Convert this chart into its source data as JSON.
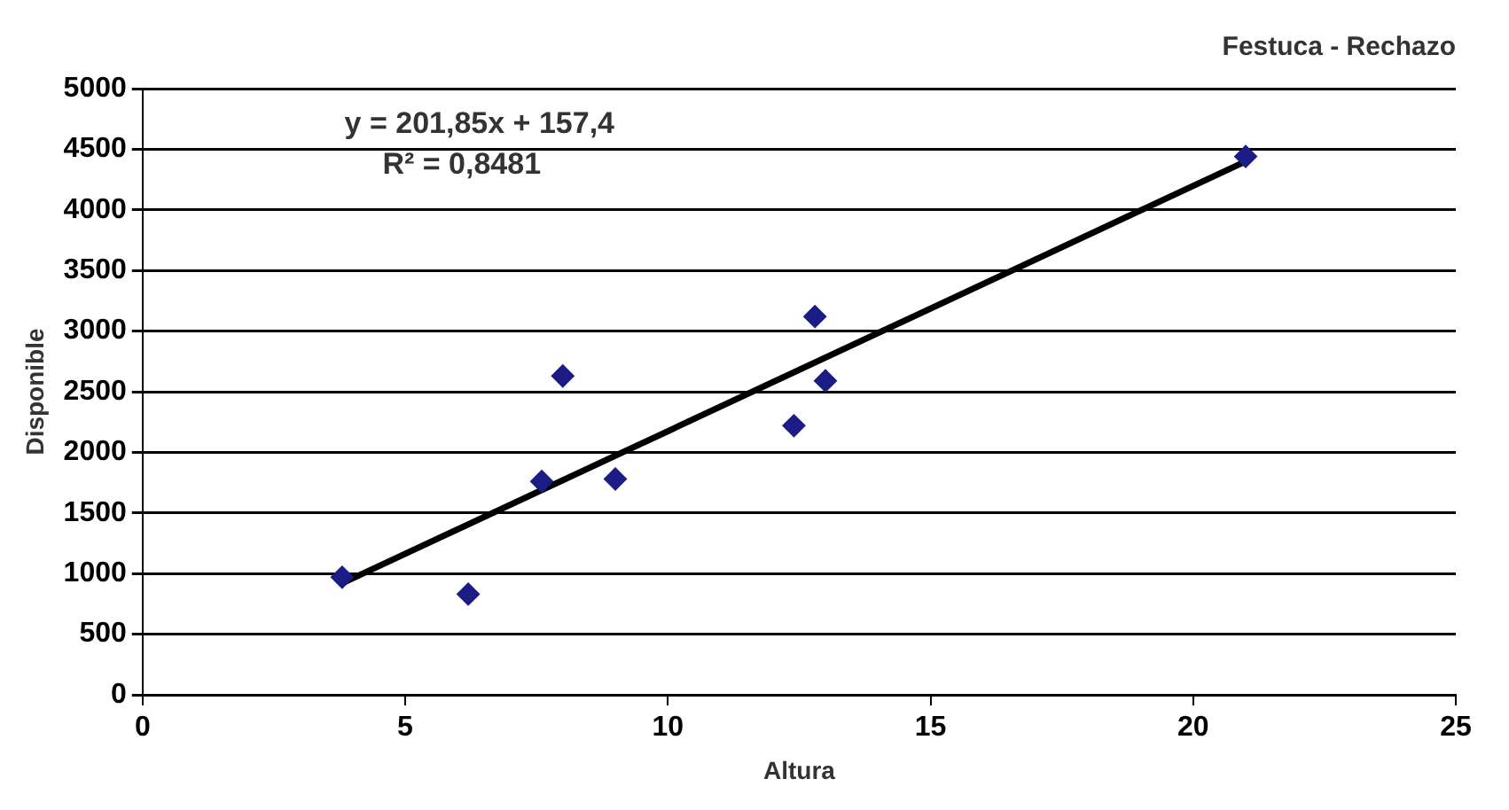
{
  "chart_data": {
    "type": "scatter",
    "title": "Festuca - Rechazo",
    "xlabel": "Altura",
    "ylabel": "Disponible",
    "annotations": [
      "y = 201,85x + 157,4",
      "R² = 0,8481"
    ],
    "series": [
      {
        "color": "#1c1c86",
        "x": [
          3.8,
          6.2,
          7.6,
          8.0,
          9.0,
          12.4,
          12.8,
          13.0,
          21.0
        ],
        "values": [
          970,
          830,
          1760,
          2630,
          1780,
          2220,
          3120,
          2590,
          4440
        ]
      },
      {
        "type": "line",
        "color": "#000000",
        "x": [
          3.8,
          21.0
        ],
        "values": [
          920,
          4400
        ],
        "marker": "none"
      }
    ],
    "xlim": [
      0,
      25
    ],
    "xticks": [
      0,
      5,
      10,
      15,
      20,
      25
    ],
    "ylim": [
      0,
      5000
    ],
    "yticks": [
      0,
      500,
      1000,
      1500,
      2000,
      2500,
      3000,
      3500,
      4000,
      4500,
      5000
    ],
    "grid": "y",
    "legend": false,
    "marker": "diamond"
  }
}
